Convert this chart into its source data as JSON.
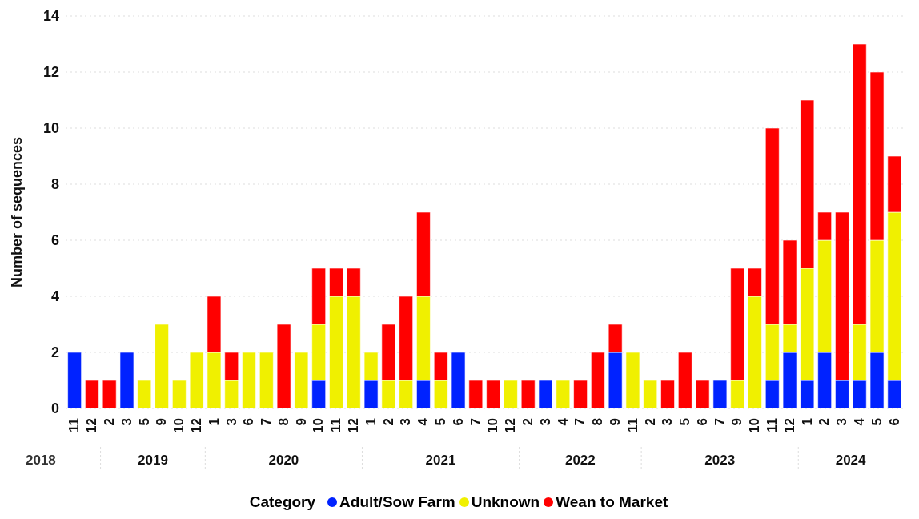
{
  "chart_data": {
    "type": "bar",
    "stacked": true,
    "ylabel": "Number of sequences",
    "legend_title": "Category",
    "legend": "bottom",
    "grid": "y",
    "categories": [
      "11",
      "12",
      "2",
      "3",
      "5",
      "9",
      "10",
      "12",
      "1",
      "3",
      "6",
      "7",
      "8",
      "9",
      "10",
      "11",
      "12",
      "1",
      "2",
      "3",
      "4",
      "5",
      "6",
      "7",
      "10",
      "12",
      "2",
      "3",
      "4",
      "7",
      "8",
      "9",
      "11",
      "2",
      "3",
      "5",
      "6",
      "7",
      "9",
      "10",
      "11",
      "12",
      "1",
      "2",
      "3",
      "4",
      "5",
      "6"
    ],
    "annotations": [
      "2018",
      "2019",
      "2020",
      "2021",
      "2022",
      "2023",
      "2024"
    ],
    "ylim": [
      0,
      14
    ],
    "yticks": [
      0,
      2,
      4,
      6,
      8,
      10,
      12,
      14
    ],
    "series": [
      {
        "name": "Adult/Sow Farm",
        "color": "#0022ff",
        "values": [
          2,
          0,
          0,
          2,
          0,
          0,
          0,
          0,
          0,
          0,
          0,
          0,
          0,
          0,
          1,
          0,
          0,
          1,
          0,
          0,
          1,
          0,
          2,
          0,
          0,
          0,
          0,
          1,
          0,
          0,
          0,
          2,
          0,
          0,
          0,
          0,
          0,
          1,
          0,
          0,
          1,
          2,
          1,
          2,
          1,
          1,
          2,
          1
        ]
      },
      {
        "name": "Unknown",
        "color": "#f0f000",
        "values": [
          0,
          0,
          0,
          0,
          1,
          3,
          1,
          2,
          2,
          1,
          2,
          2,
          0,
          2,
          2,
          4,
          4,
          1,
          1,
          1,
          3,
          1,
          0,
          0,
          0,
          1,
          0,
          0,
          1,
          0,
          0,
          0,
          2,
          1,
          0,
          0,
          0,
          0,
          1,
          4,
          2,
          1,
          4,
          4,
          0,
          2,
          4,
          6
        ]
      },
      {
        "name": "Wean to Market",
        "color": "#ff0000",
        "values": [
          0,
          1,
          1,
          0,
          0,
          0,
          0,
          0,
          2,
          1,
          0,
          0,
          3,
          0,
          2,
          1,
          1,
          0,
          2,
          3,
          3,
          1,
          0,
          1,
          1,
          0,
          1,
          0,
          0,
          1,
          2,
          1,
          0,
          0,
          1,
          2,
          1,
          0,
          4,
          1,
          7,
          3,
          6,
          1,
          6,
          10,
          6,
          2
        ]
      }
    ]
  }
}
